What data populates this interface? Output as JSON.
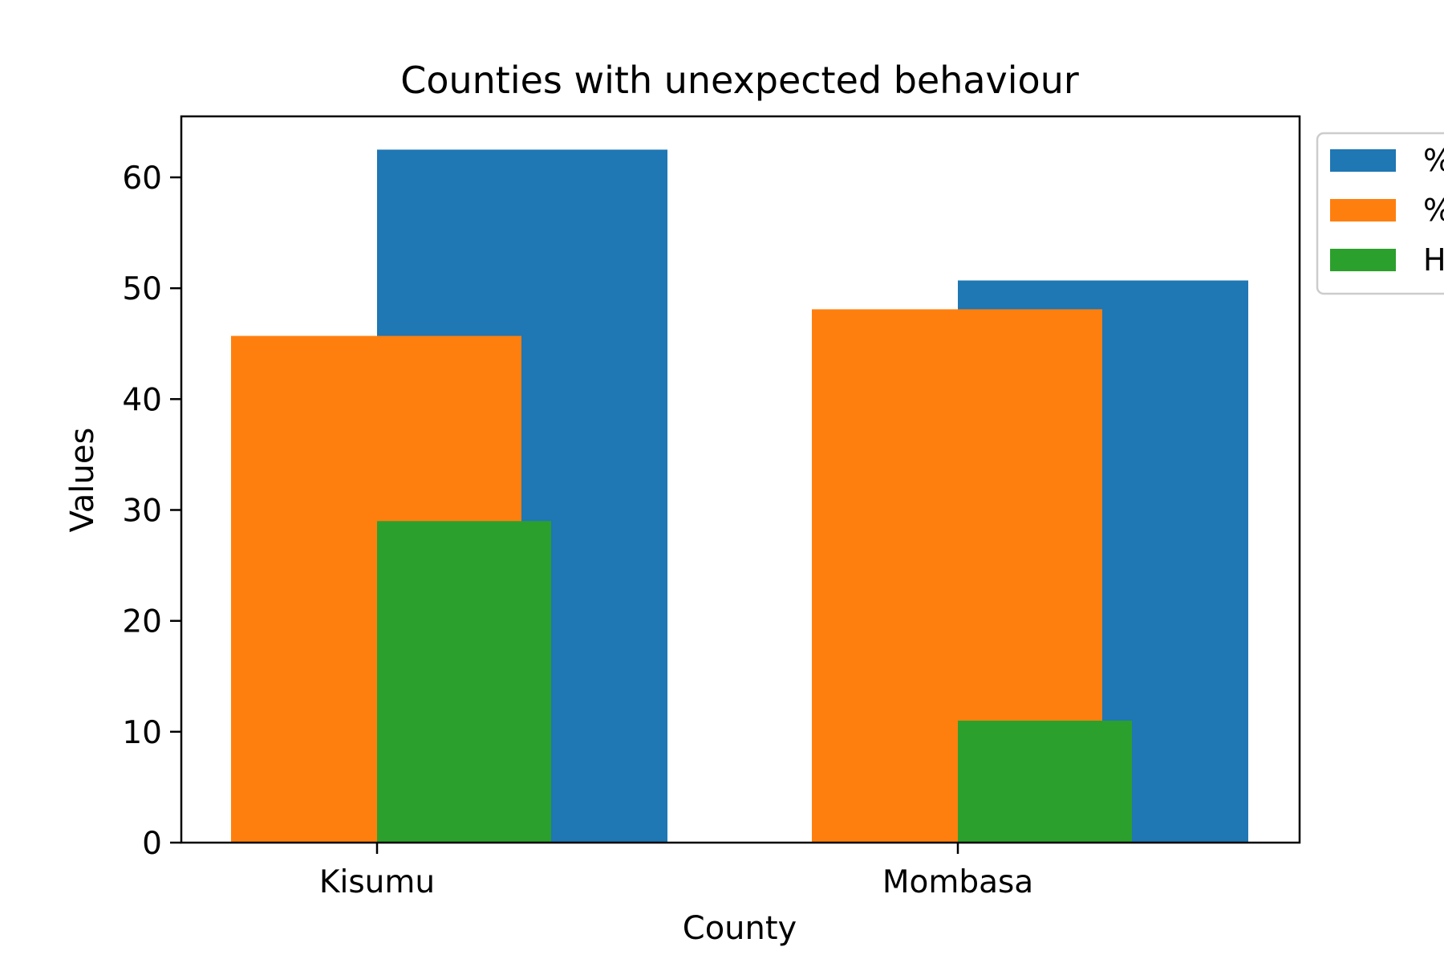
{
  "chart_data": {
    "type": "bar",
    "title": "Counties with unexpected behaviour",
    "xlabel": "County",
    "ylabel": "Values",
    "categories": [
      "Kisumu",
      "Mombasa"
    ],
    "ylim": [
      0,
      65.5
    ],
    "yticks": [
      0,
      10,
      20,
      30,
      40,
      50,
      60
    ],
    "grid": false,
    "legend_position": "outside-top-right",
    "series": [
      {
        "name": "%",
        "color": "#1f77b4",
        "values": [
          62.5,
          50.7
        ]
      },
      {
        "name": "%",
        "color": "#ff7f0e",
        "values": [
          45.7,
          48.1
        ]
      },
      {
        "name": "H",
        "color": "#2ca02c",
        "values": [
          29.0,
          11.0
        ]
      }
    ]
  }
}
